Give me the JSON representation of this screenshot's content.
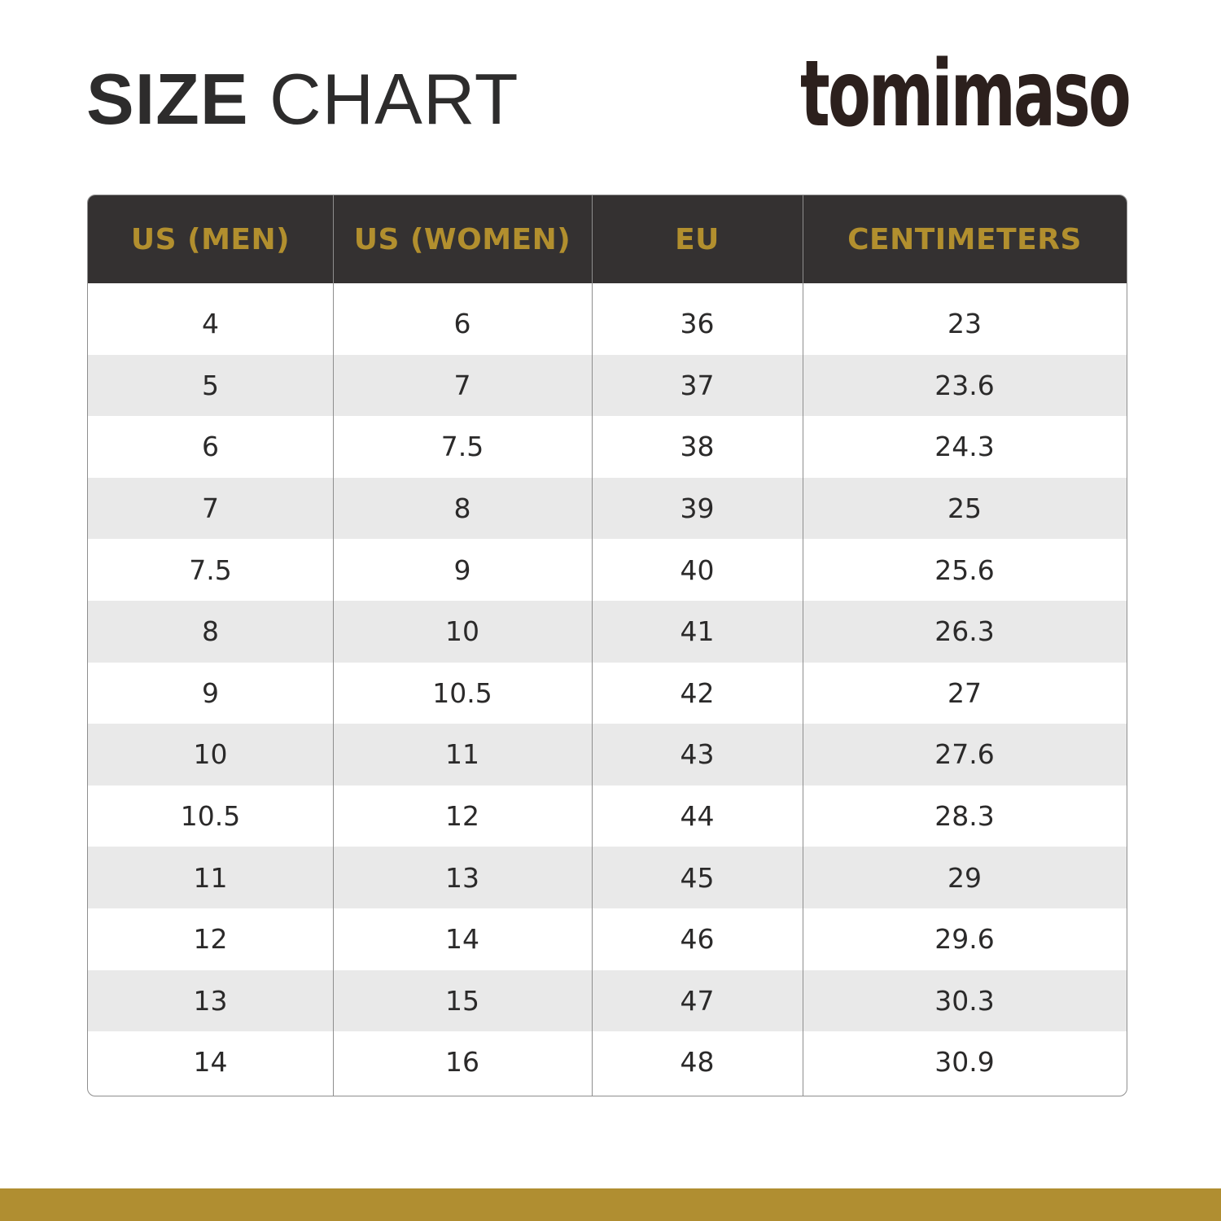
{
  "header": {
    "title_bold": "SIZE",
    "title_light": "CHART",
    "brand": "tomimaso"
  },
  "colors": {
    "accent": "#b08e31",
    "header_bg": "#343131",
    "text": "#2b2a2a",
    "row_alt": "#e9e9e9"
  },
  "table": {
    "columns": [
      "US (MEN)",
      "US (WOMEN)",
      "EU",
      "CENTIMETERS"
    ],
    "rows": [
      [
        "4",
        "6",
        "36",
        "23"
      ],
      [
        "5",
        "7",
        "37",
        "23.6"
      ],
      [
        "6",
        "7.5",
        "38",
        "24.3"
      ],
      [
        "7",
        "8",
        "39",
        "25"
      ],
      [
        "7.5",
        "9",
        "40",
        "25.6"
      ],
      [
        "8",
        "10",
        "41",
        "26.3"
      ],
      [
        "9",
        "10.5",
        "42",
        "27"
      ],
      [
        "10",
        "11",
        "43",
        "27.6"
      ],
      [
        "10.5",
        "12",
        "44",
        "28.3"
      ],
      [
        "11",
        "13",
        "45",
        "29"
      ],
      [
        "12",
        "14",
        "46",
        "29.6"
      ],
      [
        "13",
        "15",
        "47",
        "30.3"
      ],
      [
        "14",
        "16",
        "48",
        "30.9"
      ]
    ]
  }
}
